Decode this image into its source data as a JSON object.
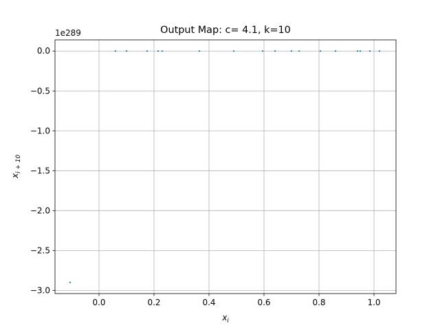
{
  "chart_data": {
    "type": "scatter",
    "title": "Output Map: c= 4.1, k=10",
    "xlabel_base": "x",
    "xlabel_sub": "i",
    "ylabel_base": "x",
    "ylabel_sub": "i + 10",
    "y_offset_text": "1e289",
    "xlim": [
      -0.16,
      1.08
    ],
    "ylim": [
      -3.04,
      0.14
    ],
    "x_ticks": [
      0.0,
      0.2,
      0.4,
      0.6,
      0.8,
      1.0
    ],
    "x_tick_labels": [
      "0.0",
      "0.2",
      "0.4",
      "0.6",
      "0.8",
      "1.0"
    ],
    "y_ticks": [
      0.0,
      -0.5,
      -1.0,
      -1.5,
      -2.0,
      -2.5,
      -3.0
    ],
    "y_tick_labels": [
      "0.0",
      "−0.5",
      "−1.0",
      "−1.5",
      "−2.0",
      "−2.5",
      "−3.0"
    ],
    "grid": true,
    "marker_color": "#1f77b4",
    "points": [
      {
        "x": -0.105,
        "y": -2.9
      },
      {
        "x": 0.06,
        "y": 0.0
      },
      {
        "x": 0.1,
        "y": 0.0
      },
      {
        "x": 0.175,
        "y": 0.0
      },
      {
        "x": 0.215,
        "y": 0.0
      },
      {
        "x": 0.23,
        "y": 0.0
      },
      {
        "x": 0.365,
        "y": 0.0
      },
      {
        "x": 0.49,
        "y": 0.0
      },
      {
        "x": 0.595,
        "y": 0.0
      },
      {
        "x": 0.64,
        "y": 0.0
      },
      {
        "x": 0.7,
        "y": 0.0
      },
      {
        "x": 0.728,
        "y": 0.0
      },
      {
        "x": 0.805,
        "y": 0.0
      },
      {
        "x": 0.86,
        "y": 0.0
      },
      {
        "x": 0.94,
        "y": 0.0
      },
      {
        "x": 0.95,
        "y": 0.0
      },
      {
        "x": 0.985,
        "y": 0.0
      },
      {
        "x": 1.02,
        "y": 0.0
      }
    ]
  }
}
